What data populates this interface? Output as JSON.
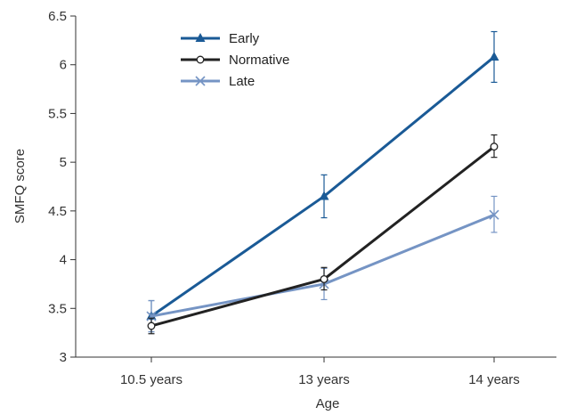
{
  "chart_data": {
    "type": "line",
    "title": "",
    "xlabel": "Age",
    "ylabel": "SMFQ score",
    "categories": [
      "10.5 years",
      "13 years",
      "14 years"
    ],
    "ylim": [
      3,
      6.5
    ],
    "yticks": [
      "3",
      "3.5",
      "4",
      "4.5",
      "5",
      "5.5",
      "6",
      "6.5"
    ],
    "grid": false,
    "legend_position": "top-left",
    "series": [
      {
        "name": "Early",
        "values": [
          3.42,
          4.65,
          6.08
        ],
        "error_low": [
          3.26,
          4.43,
          5.82
        ],
        "error_high": [
          3.58,
          4.87,
          6.34
        ],
        "color": "#1a5a96",
        "marker": "triangle"
      },
      {
        "name": "Normative",
        "values": [
          3.32,
          3.8,
          5.16
        ],
        "error_low": [
          3.24,
          3.69,
          5.05
        ],
        "error_high": [
          3.4,
          3.92,
          5.28
        ],
        "color": "#222222",
        "marker": "circle"
      },
      {
        "name": "Late",
        "values": [
          3.42,
          3.75,
          4.46
        ],
        "error_low": [
          3.26,
          3.59,
          4.28
        ],
        "error_high": [
          3.58,
          3.91,
          4.65
        ],
        "color": "#7594c4",
        "marker": "x"
      }
    ]
  }
}
